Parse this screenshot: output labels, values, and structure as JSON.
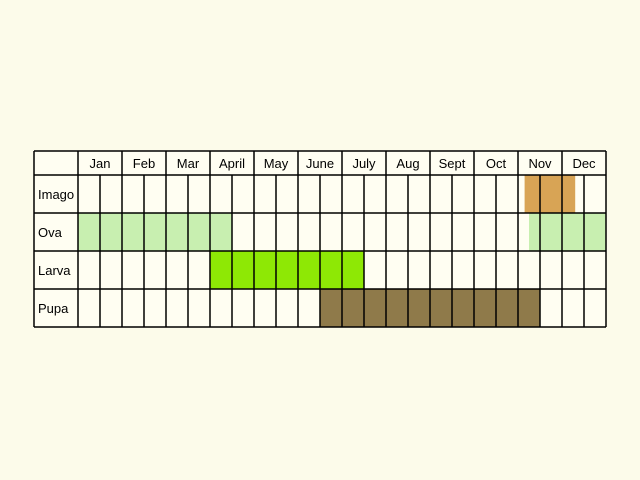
{
  "chart_data": {
    "type": "table",
    "months": [
      "Jan",
      "Feb",
      "Mar",
      "April",
      "May",
      "June",
      "July",
      "Aug",
      "Sept",
      "Oct",
      "Nov",
      "Dec"
    ],
    "halves_per_month": 2,
    "stages": [
      {
        "name": "Imago",
        "color": "#d8a455",
        "spans": [
          [
            20.3,
            22.6
          ]
        ]
      },
      {
        "name": "Ova",
        "color": "#c8efb0",
        "spans": [
          [
            0,
            7
          ],
          [
            20.5,
            24
          ]
        ]
      },
      {
        "name": "Larva",
        "color": "#8ee805",
        "spans": [
          [
            6,
            13
          ]
        ]
      },
      {
        "name": "Pupa",
        "color": "#8f7a4a",
        "spans": [
          [
            11,
            21
          ]
        ]
      }
    ]
  }
}
